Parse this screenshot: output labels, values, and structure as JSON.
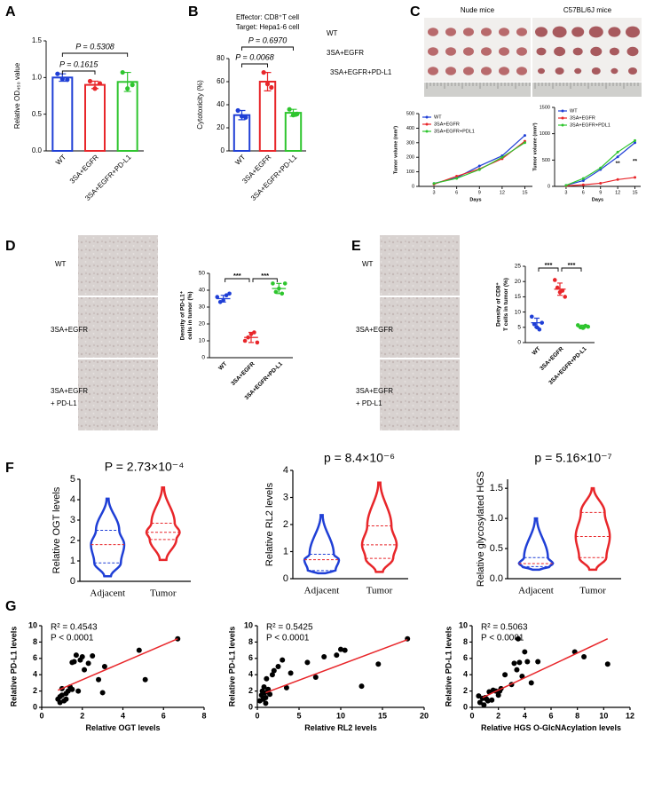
{
  "panel_labels": [
    "A",
    "B",
    "C",
    "D",
    "E",
    "F",
    "G"
  ],
  "photos": {
    "c_columns": [
      "Nude mice",
      "C57BL/6J mice"
    ],
    "c_rows": [
      "WT",
      "3SA+EGFR",
      "3SA+EGFR+PD-L1"
    ],
    "d_rows": [
      "WT",
      "3SA+EGFR",
      "3SA+EGFR",
      "+ PD-L1"
    ],
    "e_rows": [
      "WT",
      "3SA+EGFR",
      "3SA+EGFR",
      "+ PD-L1"
    ]
  },
  "chart_data": [
    {
      "type": "bar",
      "ylabel": "Relative OD₄₅₀ value",
      "categories": [
        "WT",
        "3SA+EGFR",
        "3SA+EGFR+PD-L1"
      ],
      "values": [
        1.0,
        0.9,
        0.94
      ],
      "errors": [
        0.05,
        0.05,
        0.13
      ],
      "points": [
        [
          1.05,
          0.98,
          0.97
        ],
        [
          0.95,
          0.85,
          0.92
        ],
        [
          1.07,
          0.85,
          0.9
        ]
      ],
      "colors": [
        "#1f3fd6",
        "#e8262a",
        "#2ec52e"
      ],
      "ylim": [
        0,
        1.5
      ],
      "yticks": [
        {
          "value": 0,
          "label": "0.0"
        },
        {
          "value": 0.5,
          "label": "0.5"
        },
        {
          "value": 1,
          "label": "1.0"
        },
        {
          "value": 1.5,
          "label": "1.5"
        }
      ],
      "annotations": [
        "P = 0.1615",
        "P = 0.5308"
      ]
    },
    {
      "type": "bar",
      "title": "Effector: CD8⁺T cell",
      "subtitle": "Target: Hepa1-6 cell",
      "ylabel": "Cytotoxicity (%)",
      "categories": [
        "WT",
        "3SA+EGFR",
        "3SA+EGFR+PD-L1"
      ],
      "values": [
        31,
        60,
        33
      ],
      "errors": [
        4,
        8,
        3
      ],
      "points": [
        [
          35,
          30,
          29
        ],
        [
          68,
          58,
          55
        ],
        [
          36,
          31,
          32
        ]
      ],
      "colors": [
        "#1f3fd6",
        "#e8262a",
        "#2ec52e"
      ],
      "ylim": [
        0,
        80
      ],
      "yticks": [
        0,
        20,
        40,
        60,
        80
      ],
      "annotations": [
        "P = 0.0068",
        "P = 0.6970"
      ]
    },
    {
      "type": "line",
      "ylabel": "Tumor volume (mm³)",
      "xlabel": "Days",
      "x": [
        3,
        6,
        9,
        12,
        15
      ],
      "xlim": [
        1,
        16
      ],
      "xticks": [
        3,
        6,
        9,
        12,
        15
      ],
      "ylim": [
        0,
        500
      ],
      "yticks": [
        0,
        100,
        200,
        300,
        400,
        500
      ],
      "series": [
        {
          "name": "WT",
          "color": "#1f3fd6",
          "values": [
            20,
            60,
            140,
            210,
            350
          ]
        },
        {
          "name": "3SA+EGFR",
          "color": "#e8262a",
          "values": [
            15,
            70,
            120,
            190,
            310
          ]
        },
        {
          "name": "3SA+EGFR+PDL1",
          "color": "#2ec52e",
          "values": [
            20,
            55,
            115,
            200,
            300
          ]
        }
      ]
    },
    {
      "type": "line",
      "ylabel": "Tumor volume (mm³)",
      "xlabel": "Days",
      "x": [
        3,
        6,
        9,
        12,
        15
      ],
      "xlim": [
        1,
        16
      ],
      "xticks": [
        3,
        6,
        9,
        12,
        15
      ],
      "ylim": [
        0,
        1500
      ],
      "yticks": [
        0,
        500,
        1000,
        1500
      ],
      "series": [
        {
          "name": "WT",
          "color": "#1f3fd6",
          "values": [
            20,
            110,
            320,
            560,
            830
          ]
        },
        {
          "name": "3SA+EGFR",
          "color": "#e8262a",
          "values": [
            10,
            30,
            60,
            130,
            170
          ]
        },
        {
          "name": "3SA+EGFR+PDL1",
          "color": "#2ec52e",
          "values": [
            20,
            150,
            350,
            650,
            870
          ]
        }
      ],
      "annotations": [
        "**",
        "**"
      ]
    },
    {
      "type": "dot",
      "ylabel": [
        "Density of PD-L1⁺",
        "cells in tumor (%)"
      ],
      "categories": [
        "WT",
        "3SA+EGFR",
        "3SA+EGFR+PD-L1"
      ],
      "values": [
        35,
        12,
        41
      ],
      "errors": [
        2,
        3,
        3
      ],
      "points": [
        [
          36,
          33,
          34,
          37,
          38
        ],
        [
          10,
          12,
          14,
          15,
          9
        ],
        [
          44,
          39,
          41,
          38,
          44
        ]
      ],
      "colors": [
        "#1f3fd6",
        "#e8262a",
        "#2ec52e"
      ],
      "ylim": [
        0,
        50
      ],
      "yticks": [
        0,
        10,
        20,
        30,
        40,
        50
      ],
      "annotations": [
        "***",
        "***"
      ]
    },
    {
      "type": "dot",
      "ylabel": [
        "Density of CD8⁺",
        "T cells in tumor (%)"
      ],
      "categories": [
        "WT",
        "3SA+EGFR",
        "3SA+EGFR+PD-L1"
      ],
      "values": [
        6.5,
        17.5,
        5.2
      ],
      "errors": [
        1.5,
        2,
        0.5
      ],
      "points": [
        [
          8.5,
          6,
          5,
          4.3,
          6.5
        ],
        [
          20.5,
          18,
          16.5,
          17,
          15
        ],
        [
          5.7,
          5,
          4.8,
          5.5,
          5.2
        ]
      ],
      "colors": [
        "#1f3fd6",
        "#e8262a",
        "#2ec52e"
      ],
      "ylim": [
        0,
        25
      ],
      "yticks": [
        0,
        5,
        10,
        15,
        20,
        25
      ],
      "annotations": [
        "***",
        "***"
      ]
    },
    {
      "type": "violin",
      "ylabel": "Relative OGT levels",
      "annotation": "P = 2.73×10⁻⁴",
      "categories": [
        "Adjacent",
        "Tumor"
      ],
      "colors": [
        "#1f3fd6",
        "#e8262a"
      ],
      "stats": [
        {
          "min": 0.25,
          "q1": 0.9,
          "median": 1.8,
          "q3": 2.5,
          "max": 4.05
        },
        {
          "min": 1.05,
          "q1": 2.05,
          "median": 2.4,
          "q3": 2.85,
          "max": 4.6
        }
      ],
      "ylim": [
        0,
        5
      ],
      "yticks": [
        0,
        1,
        2,
        3,
        4,
        5
      ]
    },
    {
      "type": "violin",
      "ylabel": "Relative RL2 levels",
      "annotation": "p = 8.4×10⁻⁶",
      "categories": [
        "Adjacent",
        "Tumor"
      ],
      "colors": [
        "#1f3fd6",
        "#e8262a"
      ],
      "stats": [
        {
          "min": 0.2,
          "q1": 0.3,
          "median": 0.7,
          "q3": 0.9,
          "max": 2.35
        },
        {
          "min": 0.25,
          "q1": 0.75,
          "median": 1.25,
          "q3": 1.95,
          "max": 3.55
        }
      ],
      "ylim": [
        0,
        4
      ],
      "yticks": [
        0,
        1,
        2,
        3,
        4
      ]
    },
    {
      "type": "violin",
      "ylabel": "Relative glycosylated HGS",
      "annotation": "p = 5.16×10⁻⁷",
      "categories": [
        "Adjacent",
        "Tumor"
      ],
      "colors": [
        "#1f3fd6",
        "#e8262a"
      ],
      "stats": [
        {
          "min": 0.15,
          "q1": 0.2,
          "median": 0.25,
          "q3": 0.35,
          "max": 1.0
        },
        {
          "min": 0.15,
          "q1": 0.35,
          "median": 0.7,
          "q3": 1.1,
          "max": 1.5
        }
      ],
      "ylim": [
        0,
        1.65
      ],
      "yticks": [
        {
          "value": 0,
          "label": "0.0"
        },
        {
          "value": 0.5,
          "label": "0.5"
        },
        {
          "value": 1,
          "label": "1.0"
        },
        {
          "value": 1.5,
          "label": "1.5"
        }
      ]
    },
    {
      "type": "scatter",
      "xlabel": "Relative OGT levels",
      "ylabel": "Relative PD-L1 levels",
      "annotations": [
        "R² = 0.4543",
        "P < 0.0001"
      ],
      "x": [
        0.8,
        0.9,
        1.0,
        1.0,
        1.1,
        1.2,
        1.3,
        1.4,
        1.5,
        1.6,
        1.7,
        1.8,
        1.9,
        2.0,
        2.1,
        2.3,
        2.5,
        2.8,
        3.0,
        3.1,
        4.8,
        5.1,
        1.2,
        0.9,
        1.5,
        6.7
      ],
      "y": [
        1.0,
        0.6,
        1.5,
        2.3,
        0.8,
        1.0,
        2.0,
        2.5,
        5.5,
        5.6,
        6.4,
        2.0,
        5.8,
        6.2,
        4.6,
        5.4,
        6.3,
        3.4,
        1.8,
        5.0,
        7.0,
        3.4,
        1.7,
        1.3,
        2.2,
        8.4
      ],
      "trend": {
        "x": [
          0.8,
          6.7
        ],
        "y": [
          2.1,
          8.4
        ]
      },
      "color": "#000000",
      "trend_color": "#e8262a",
      "xlim": [
        0,
        8
      ],
      "xticks": [
        0,
        2,
        4,
        6,
        8
      ],
      "ylim": [
        0,
        10
      ],
      "yticks": [
        0,
        2,
        4,
        6,
        8,
        10
      ]
    },
    {
      "type": "scatter",
      "xlabel": "Relative RL2 levels",
      "ylabel": "Relative PD-L1 levels",
      "annotations": [
        "R² = 0.5425",
        "P < 0.0001"
      ],
      "x": [
        0.3,
        0.5,
        0.6,
        0.7,
        0.8,
        0.9,
        1.0,
        1.0,
        1.1,
        1.2,
        1.3,
        1.5,
        1.8,
        2.0,
        2.5,
        3.0,
        3.5,
        4.0,
        6.0,
        7.0,
        8.0,
        9.5,
        10.0,
        10.5,
        12.5,
        14.5,
        18.0
      ],
      "y": [
        0.8,
        1.5,
        2.0,
        1.0,
        2.5,
        1.8,
        0.5,
        1.2,
        3.5,
        1.9,
        2.2,
        1.6,
        4.0,
        4.5,
        5.0,
        5.8,
        2.4,
        4.2,
        5.5,
        3.7,
        6.2,
        6.4,
        7.1,
        7.0,
        2.6,
        5.3,
        8.4
      ],
      "trend": {
        "x": [
          1,
          18
        ],
        "y": [
          1.8,
          8.3
        ]
      },
      "color": "#000000",
      "trend_color": "#e8262a",
      "xlim": [
        0,
        20
      ],
      "xticks": [
        0,
        5,
        10,
        15,
        20
      ],
      "ylim": [
        0,
        10
      ],
      "yticks": [
        0,
        2,
        4,
        6,
        8,
        10
      ]
    },
    {
      "type": "scatter",
      "xlabel": "Relative HGS O-GlcNAcylation levels",
      "ylabel": "Relative PD-L1 levels",
      "annotations": [
        "R² = 0.5063",
        "P < 0.0001"
      ],
      "x": [
        0.5,
        0.6,
        0.8,
        0.9,
        1.0,
        1.1,
        1.2,
        1.3,
        1.5,
        1.6,
        1.8,
        2.0,
        2.1,
        2.2,
        2.5,
        3.0,
        3.2,
        3.4,
        3.5,
        3.6,
        3.8,
        4.0,
        4.2,
        4.5,
        5.0,
        7.8,
        8.5,
        10.3
      ],
      "y": [
        1.4,
        0.6,
        1.1,
        0.3,
        1.2,
        1.0,
        0.8,
        1.9,
        0.9,
        2.1,
        2.0,
        1.5,
        2.0,
        2.3,
        4.0,
        2.8,
        5.4,
        4.6,
        8.4,
        5.5,
        3.8,
        6.8,
        5.6,
        3.0,
        5.6,
        6.8,
        6.2,
        5.3
      ],
      "trend": {
        "x": [
          0.8,
          10.3
        ],
        "y": [
          1.2,
          8.4
        ]
      },
      "color": "#000000",
      "trend_color": "#e8262a",
      "xlim": [
        0,
        12
      ],
      "xticks": [
        0,
        2,
        4,
        6,
        8,
        10,
        12
      ],
      "ylim": [
        0,
        10
      ],
      "yticks": [
        0,
        2,
        4,
        6,
        8,
        10
      ]
    }
  ]
}
